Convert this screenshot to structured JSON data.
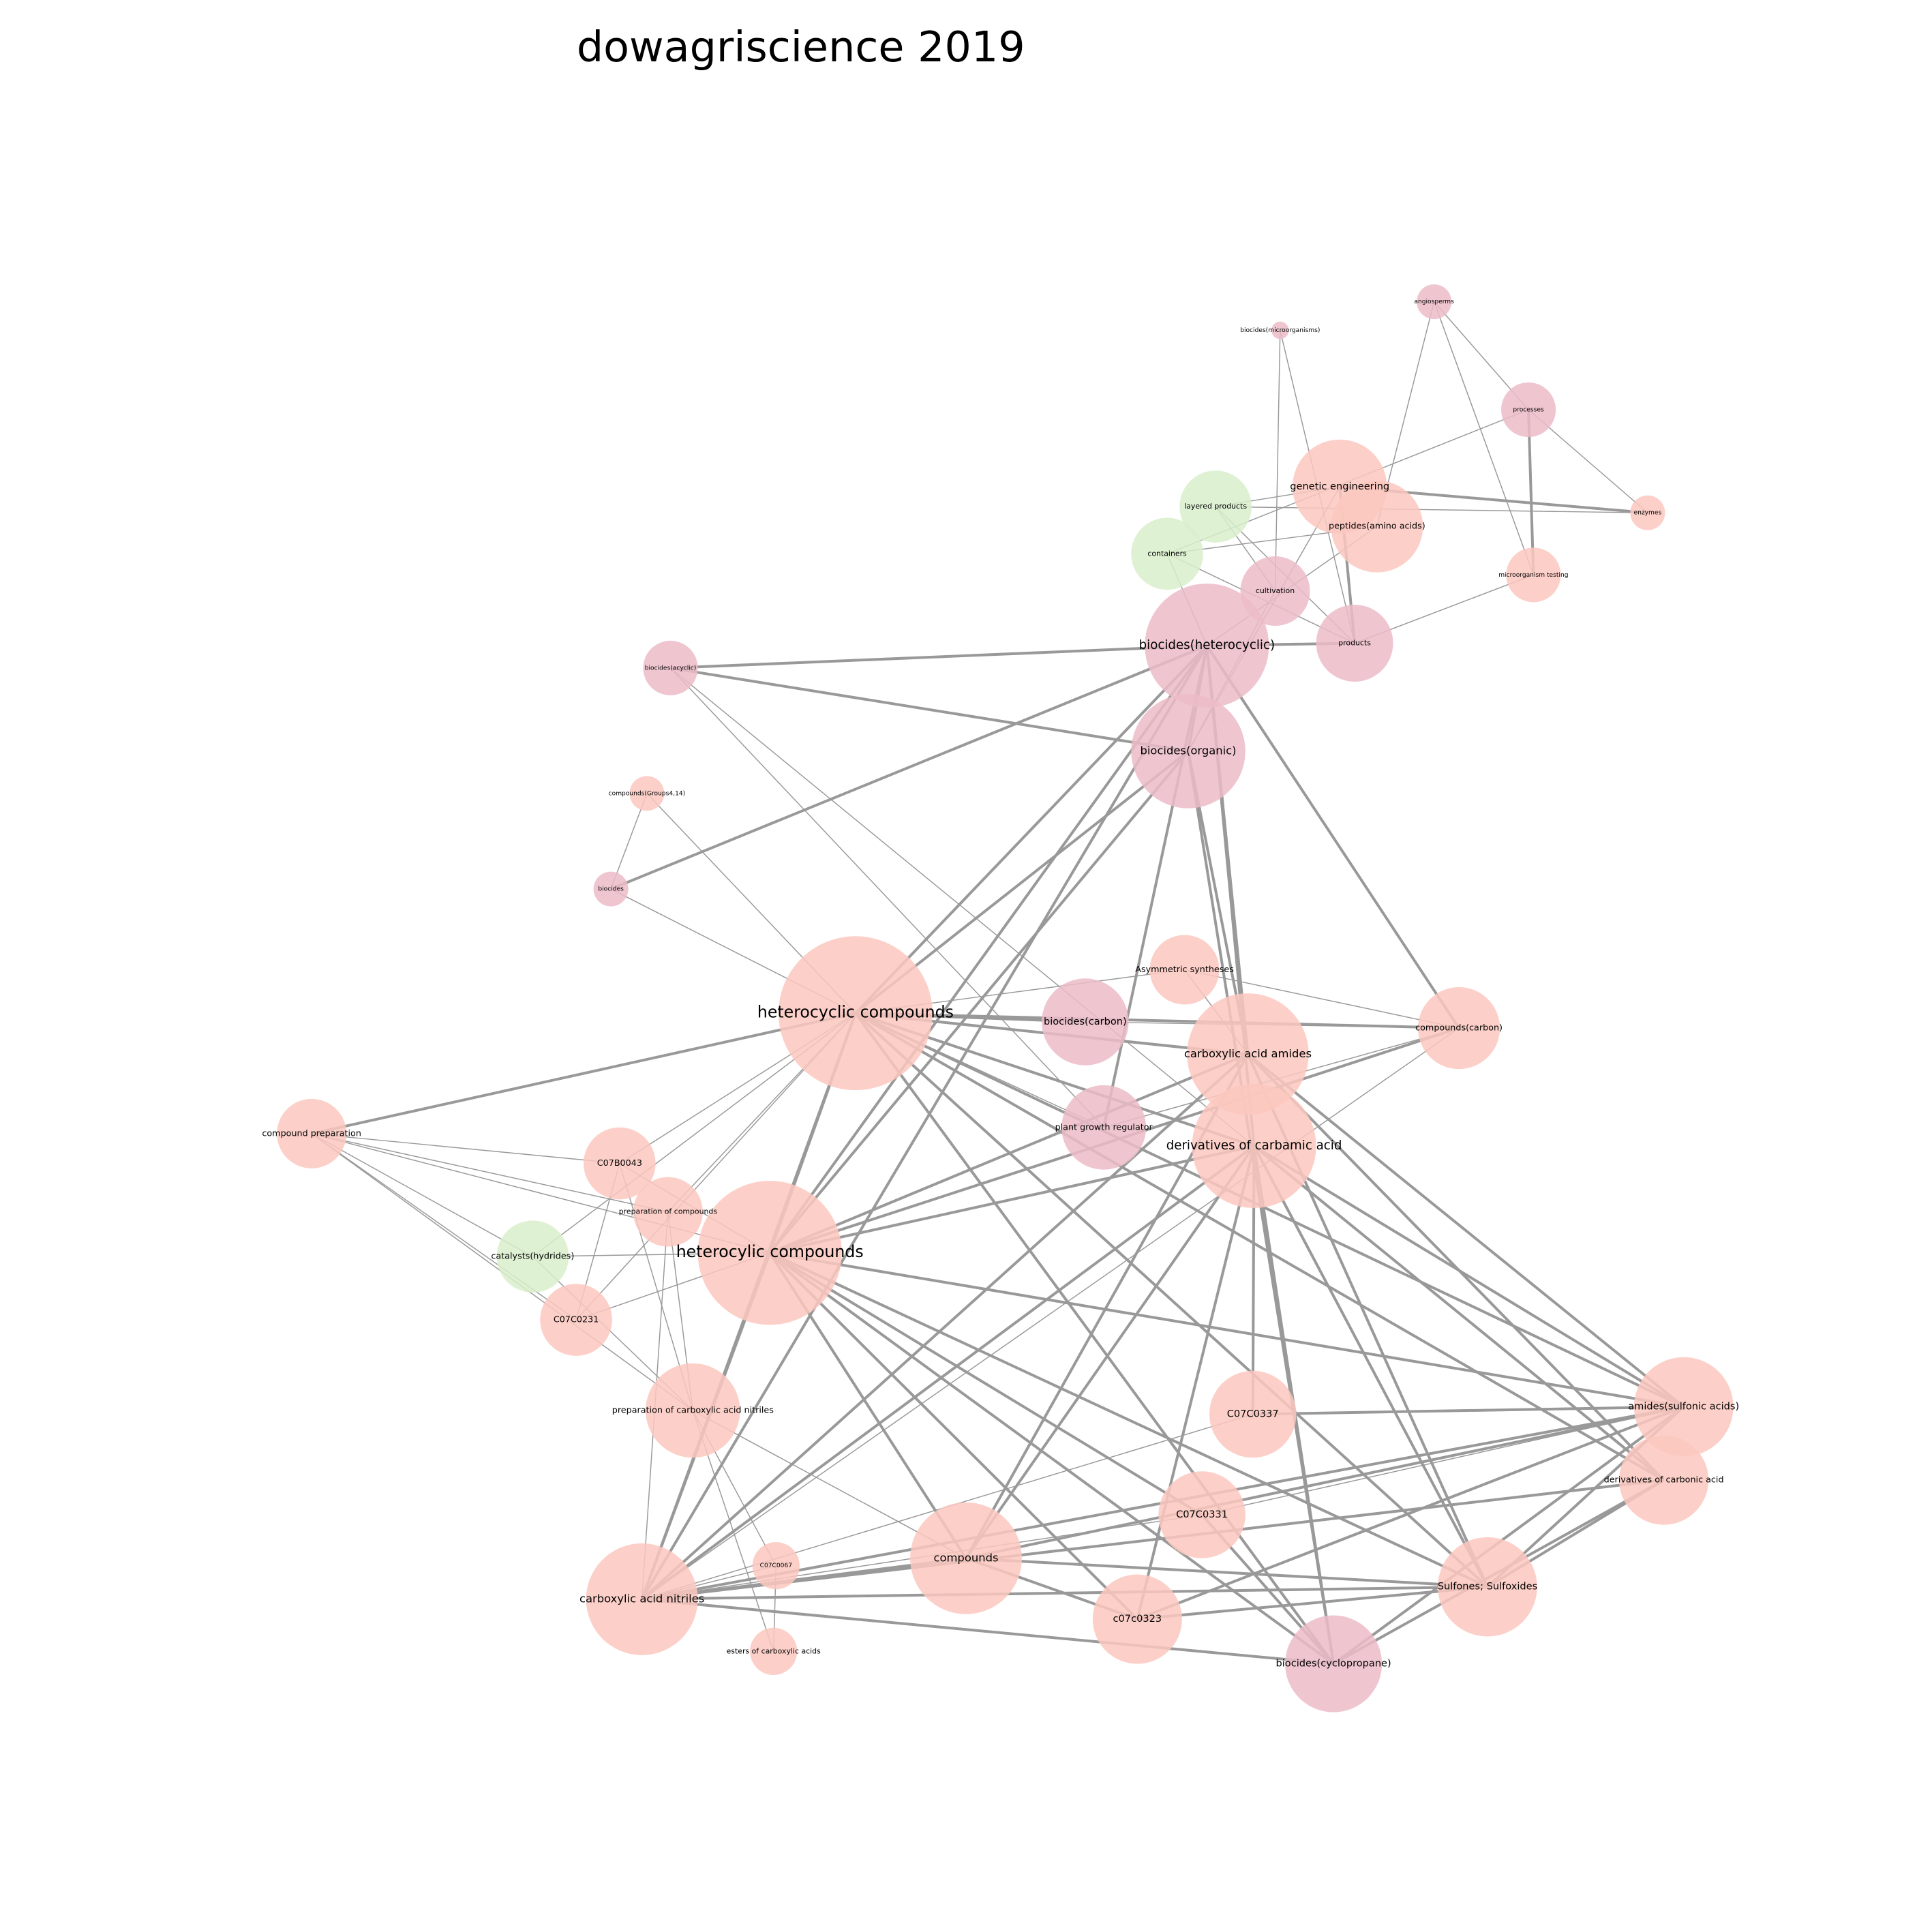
{
  "title": "dowagriscience 2019",
  "nodes": [
    {
      "label": "heterocyclic compounds"
    },
    {
      "label": "heterocylic compounds"
    },
    {
      "label": "biocides(heterocyclic)"
    },
    {
      "label": "biocides(organic)"
    },
    {
      "label": "genetic engineering"
    },
    {
      "label": "peptides(amino acids)"
    },
    {
      "label": "layered products"
    },
    {
      "label": "containers"
    },
    {
      "label": "cultivation"
    },
    {
      "label": "products"
    },
    {
      "label": "processes"
    },
    {
      "label": "angiosperms"
    },
    {
      "label": "biocides(microorganisms)"
    },
    {
      "label": "enzymes"
    },
    {
      "label": "microorganism testing"
    },
    {
      "label": "biocides(acyclic)"
    },
    {
      "label": "compounds(Groups4,14)"
    },
    {
      "label": "biocides"
    },
    {
      "label": "Asymmetric syntheses"
    },
    {
      "label": "biocides(carbon)"
    },
    {
      "label": "carboxylic acid amides"
    },
    {
      "label": "compounds(carbon)"
    },
    {
      "label": "plant growth regulator"
    },
    {
      "label": "derivatives of carbamic acid"
    },
    {
      "label": "compound preparation"
    },
    {
      "label": "C07B0043"
    },
    {
      "label": "preparation of compounds"
    },
    {
      "label": "catalysts(hydrides)"
    },
    {
      "label": "C07C0231"
    },
    {
      "label": "preparation of carboxylic acid nitriles"
    },
    {
      "label": "C07C0337"
    },
    {
      "label": "amides(sulfonic acids)"
    },
    {
      "label": "derivatives of carbonic acid"
    },
    {
      "label": "C07C0331"
    },
    {
      "label": "compounds"
    },
    {
      "label": "C07C0067"
    },
    {
      "label": "carboxylic acid nitriles"
    },
    {
      "label": "Sulfones; Sulfoxides"
    },
    {
      "label": "c07c0323"
    },
    {
      "label": "esters of carboxylic acids"
    },
    {
      "label": "biocides(cyclopropane)"
    }
  ]
}
